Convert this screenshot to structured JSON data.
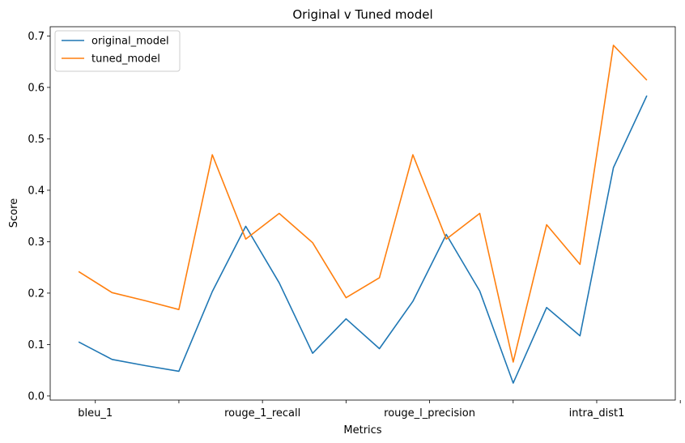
{
  "chart_data": {
    "type": "line",
    "title": "Original v Tuned model",
    "xlabel": "Metrics",
    "ylabel": "Score",
    "xtick_labels": [
      "bleu_1",
      "",
      "rouge_1_recall",
      "",
      "rouge_l_precision",
      "",
      "intra_dist1",
      ""
    ],
    "ytick_labels": [
      "0.0",
      "0.1",
      "0.2",
      "0.3",
      "0.4",
      "0.5",
      "0.6",
      "0.7"
    ],
    "ylim": [
      -0.008,
      0.718
    ],
    "xlim": [
      -0.85,
      17.85
    ],
    "legend_position": "upper-left",
    "grid": false,
    "x": [
      0,
      1,
      2,
      3,
      4,
      5,
      6,
      7,
      8,
      9,
      10,
      11,
      12,
      13,
      14,
      15,
      16,
      17
    ],
    "series": [
      {
        "name": "original_model",
        "color": "#1f77b4",
        "values": [
          0.105,
          0.071,
          0.059,
          0.048,
          0.203,
          0.33,
          0.22,
          0.083,
          0.15,
          0.092,
          0.184,
          0.314,
          0.204,
          0.025,
          0.172,
          0.117,
          0.444,
          0.584
        ]
      },
      {
        "name": "tuned_model",
        "color": "#ff7f0e",
        "values": [
          0.242,
          0.201,
          0.185,
          0.168,
          0.469,
          0.305,
          0.355,
          0.298,
          0.191,
          0.23,
          0.469,
          0.305,
          0.355,
          0.066,
          0.333,
          0.256,
          0.682,
          0.614
        ]
      }
    ]
  }
}
